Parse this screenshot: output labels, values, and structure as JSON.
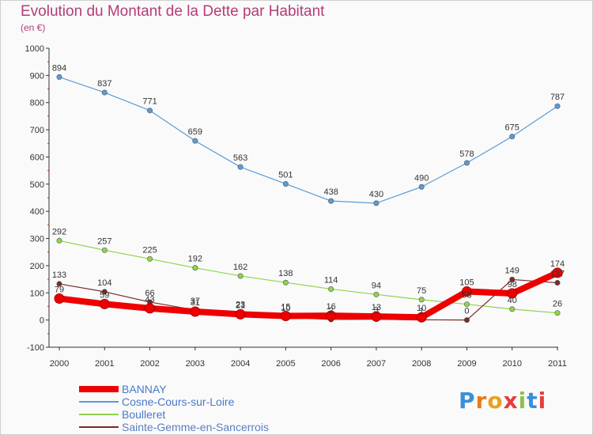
{
  "chart_data": {
    "type": "line",
    "title": "Evolution du Montant de la Dette par Habitant",
    "subtitle": "(en €)",
    "x": [
      "2000",
      "2001",
      "2002",
      "2003",
      "2004",
      "2005",
      "2006",
      "2007",
      "2008",
      "2009",
      "2010",
      "2011"
    ],
    "ylim": [
      -100,
      1000
    ],
    "yticks": [
      -100,
      0,
      100,
      200,
      300,
      400,
      500,
      600,
      700,
      800,
      900,
      1000
    ],
    "grid": false,
    "legend_position": "bottom-left",
    "series": [
      {
        "name": "BANNAY",
        "color": "#ee0000",
        "values": [
          79,
          59,
          43,
          31,
          21,
          15,
          16,
          13,
          10,
          105,
          98,
          174
        ],
        "labels": [
          "79",
          "59",
          "43",
          "31",
          "21",
          "15",
          "16",
          "13",
          "10",
          "105",
          "98",
          "174"
        ]
      },
      {
        "name": "Cosne-Cours-sur-Loire",
        "color": "#5b9bd5",
        "values": [
          894,
          837,
          771,
          659,
          563,
          501,
          438,
          430,
          490,
          578,
          675,
          787
        ],
        "labels": [
          "894",
          "837",
          "771",
          "659",
          "563",
          "501",
          "438",
          "430",
          "490",
          "578",
          "675",
          "787"
        ]
      },
      {
        "name": "Boulleret",
        "color": "#8fd44a",
        "values": [
          292,
          257,
          225,
          192,
          162,
          138,
          114,
          94,
          75,
          58,
          40,
          26
        ],
        "labels": [
          "292",
          "257",
          "225",
          "192",
          "162",
          "138",
          "114",
          "94",
          "75",
          "58",
          "40",
          "26"
        ]
      },
      {
        "name": "Sainte-Gemme-en-Sancerrois",
        "color": "#7b2a2a",
        "values": [
          133,
          104,
          66,
          37,
          23,
          10,
          2,
          3,
          1,
          0,
          149,
          137
        ],
        "labels": [
          "133",
          "104",
          "66",
          "37",
          "23",
          "10",
          "2",
          "3",
          "1",
          "0",
          "149",
          "137"
        ]
      }
    ]
  },
  "logo": {
    "text": "Proxiti"
  }
}
